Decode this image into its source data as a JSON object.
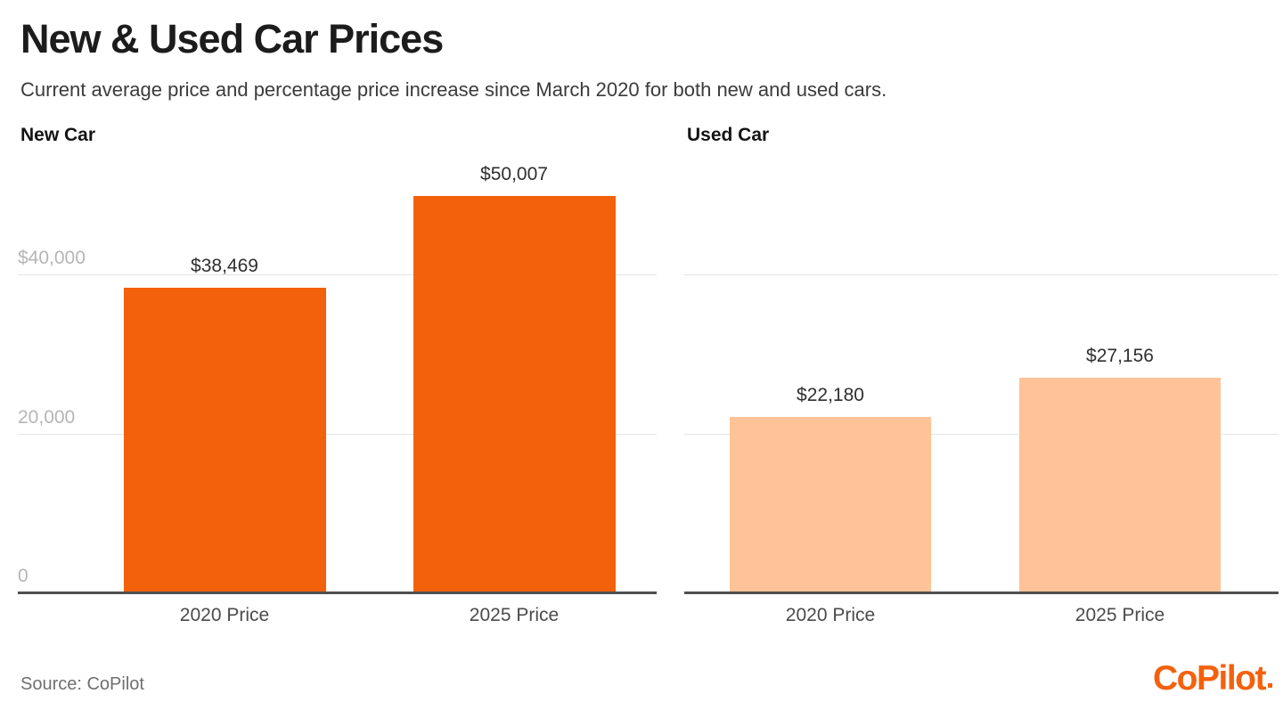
{
  "page": {
    "title": "New & Used Car Prices",
    "subtitle": "Current average price and percentage price increase since March 2020 for both new and used cars.",
    "source_note": "Source: CoPilot",
    "brand_logo": "CoPilot"
  },
  "colors": {
    "new_car_bar": "#F4610C",
    "used_car_bar": "#FFC397",
    "brand_orange": "#F4610C",
    "gridline": "#E4E4E4",
    "axis_baseline": "#4F4F4F",
    "y_tick_label": "#B5B5B5",
    "x_axis_label": "#4B4B4B",
    "value_label": "#2F2F2F",
    "title_text": "#1C1C1C",
    "subtitle_text": "#3B3B3B",
    "source_text": "#6F6F6F"
  },
  "chart_data": [
    {
      "type": "bar",
      "title": "New Car",
      "categories": [
        "2020 Price",
        "2025 Price"
      ],
      "values": [
        38469,
        50007
      ],
      "value_labels": [
        "$38,469",
        "$50,007"
      ],
      "bar_color": "#F4610C",
      "xlabel": "",
      "ylabel": "",
      "ylim": [
        0,
        55600
      ],
      "grid": true,
      "legend_position": "none",
      "yticks": [
        {
          "value": 40000,
          "label": "$40,000"
        },
        {
          "value": 20000,
          "label": "20,000"
        },
        {
          "value": 0,
          "label": "0"
        }
      ]
    },
    {
      "type": "bar",
      "title": "Used Car",
      "categories": [
        "2020 Price",
        "2025 Price"
      ],
      "values": [
        22180,
        27156
      ],
      "value_labels": [
        "$22,180",
        "$27,156"
      ],
      "bar_color": "#FFC397",
      "xlabel": "",
      "ylabel": "",
      "ylim": [
        0,
        55600
      ],
      "grid": true,
      "legend_position": "none",
      "yticks": [
        {
          "value": 40000,
          "label": ""
        },
        {
          "value": 20000,
          "label": ""
        }
      ]
    }
  ]
}
